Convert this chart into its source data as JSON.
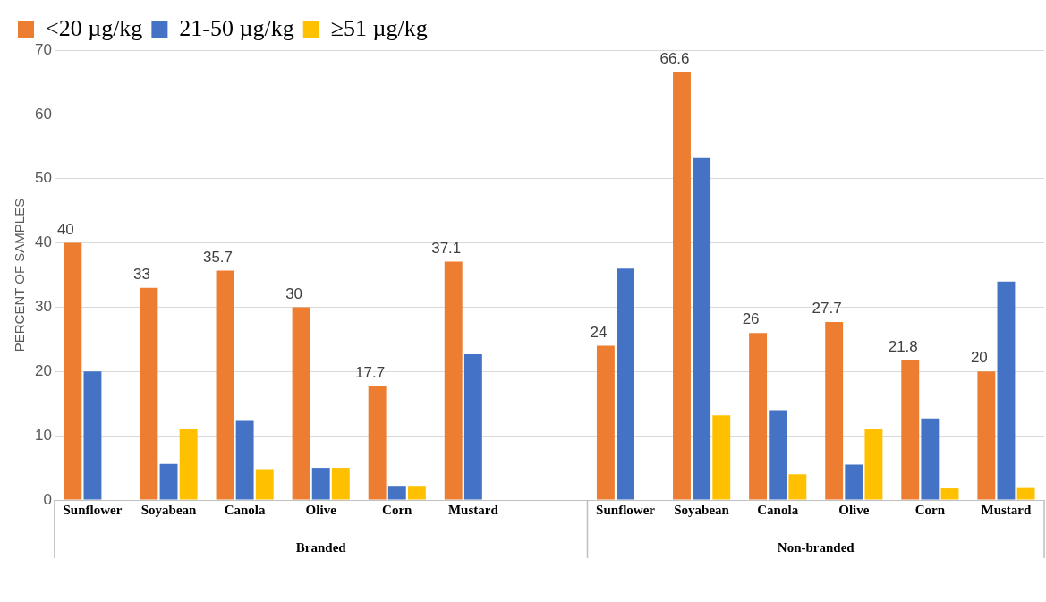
{
  "chart_data": {
    "type": "bar",
    "ylabel": "PERCENT OF SAMPLES",
    "categories": [
      "Sunflower",
      "Soyabean",
      "Canola",
      "Olive",
      "Corn",
      "Mustard",
      null,
      "Sunflower",
      "Soyabean",
      "Canola",
      "Olive",
      "Corn",
      "Mustard"
    ],
    "series": [
      {
        "name": "<20 µg/kg",
        "color": "#ed7d31",
        "values": [
          40,
          33,
          35.7,
          30,
          17.7,
          37.1,
          null,
          24,
          66.6,
          26,
          27.7,
          21.8,
          20
        ],
        "value_labels": [
          "40",
          "33",
          "35.7",
          "30",
          "17.7",
          "37.1",
          null,
          "24",
          "66.6",
          "26",
          "27.7",
          "21.8",
          "20"
        ]
      },
      {
        "name": "21-50 µg/kg",
        "color": "#4472c4",
        "values": [
          20,
          5.6,
          12.3,
          5,
          2.2,
          22.7,
          null,
          36,
          53.2,
          14,
          5.5,
          12.7,
          34
        ]
      },
      {
        "name": "≥51 µg/kg",
        "color": "#ffc000",
        "values": [
          null,
          11,
          4.8,
          5,
          2.2,
          null,
          null,
          null,
          13.2,
          4,
          11,
          1.8,
          2
        ]
      }
    ],
    "annotations": [
      "Branded",
      "Non-branded"
    ],
    "ylim": [
      0,
      70
    ],
    "yticks": [
      0,
      10,
      20,
      30,
      40,
      50,
      60,
      70
    ],
    "grid": "y",
    "legend": "top left"
  }
}
